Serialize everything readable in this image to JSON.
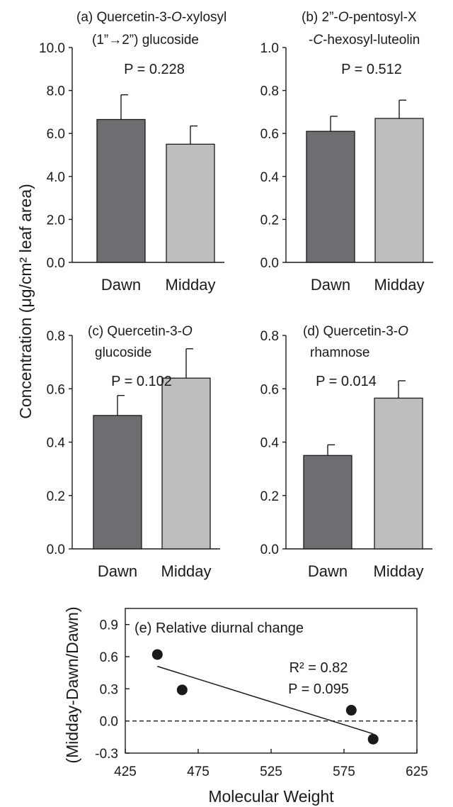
{
  "chart_data": [
    {
      "id": "a",
      "type": "bar",
      "title_lines": [
        "(a) Quercetin-3-",
        "O",
        "-xylosyl",
        "(1”→2”) glucoside"
      ],
      "categories": [
        "Dawn",
        "Midday"
      ],
      "values": [
        6.65,
        5.5
      ],
      "error": [
        1.15,
        0.85
      ],
      "ylim": [
        0,
        10
      ],
      "yticks": [
        "0.0",
        "2.0",
        "4.0",
        "6.0",
        "8.0",
        "10.0"
      ],
      "p_value": "P = 0.228"
    },
    {
      "id": "b",
      "type": "bar",
      "title_lines": [
        "(b) 2”-",
        "O",
        "-pentosyl-X",
        "-",
        "C",
        "-hexosyl-luteolin"
      ],
      "categories": [
        "Dawn",
        "Midday"
      ],
      "values": [
        0.61,
        0.67
      ],
      "error": [
        0.07,
        0.085
      ],
      "ylim": [
        0,
        1
      ],
      "yticks": [
        "0.0",
        "0.2",
        "0.4",
        "0.6",
        "0.8",
        "1.0"
      ],
      "p_value": "P = 0.512"
    },
    {
      "id": "c",
      "type": "bar",
      "title_lines": [
        "(c) Quercetin-3-",
        "O",
        "glucoside"
      ],
      "categories": [
        "Dawn",
        "Midday"
      ],
      "values": [
        0.5,
        0.64
      ],
      "error": [
        0.075,
        0.11
      ],
      "ylim": [
        0,
        0.8
      ],
      "yticks": [
        "0.0",
        "0.2",
        "0.4",
        "0.6",
        "0.8"
      ],
      "p_value": "P = 0.102"
    },
    {
      "id": "d",
      "type": "bar",
      "title_lines": [
        "(d) Quercetin-3-",
        "O",
        "rhamnose"
      ],
      "categories": [
        "Dawn",
        "Midday"
      ],
      "values": [
        0.35,
        0.565
      ],
      "error": [
        0.04,
        0.065
      ],
      "ylim": [
        0,
        0.8
      ],
      "yticks": [
        "0.0",
        "0.2",
        "0.4",
        "0.6",
        "0.8"
      ],
      "p_value": "P = 0.014"
    },
    {
      "id": "e",
      "type": "scatter",
      "title": "(e) Relative diurnal change",
      "x": [
        447,
        464,
        580,
        595
      ],
      "y": [
        0.62,
        0.29,
        0.1,
        -0.17
      ],
      "trend": {
        "x": [
          447,
          595
        ],
        "y": [
          0.51,
          -0.12
        ]
      },
      "xlim": [
        425,
        625
      ],
      "ylim": [
        -0.3,
        1.05
      ],
      "xticks": [
        "425",
        "475",
        "525",
        "575",
        "625"
      ],
      "yticks": [
        "-0.3",
        "0.0",
        "0.3",
        "0.6",
        "0.9"
      ],
      "reference_line_y": 0,
      "r2": "R² = 0.82",
      "p_value": "P = 0.095",
      "xlabel": "Molecular Weight",
      "ylabel": "(Midday-Dawn/Dawn)"
    }
  ],
  "shared_ylabel": "Concentration (μg/cm² leaf area)",
  "colors": {
    "dawn": "#6d6e71",
    "midday": "#bcbec0",
    "ink": "#1a1a1a"
  }
}
